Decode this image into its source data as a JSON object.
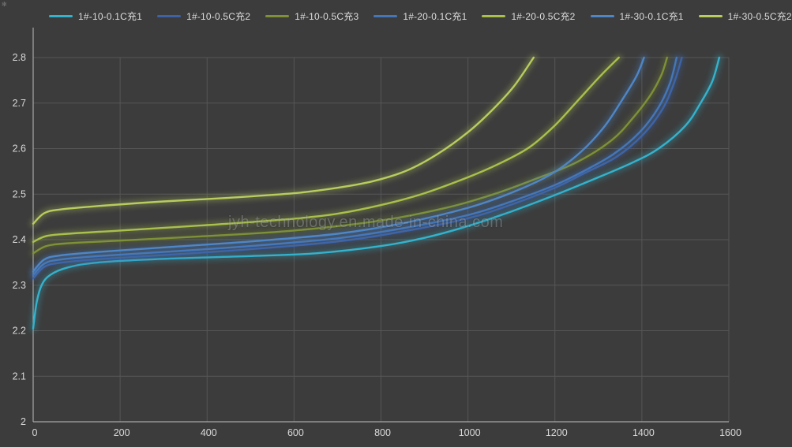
{
  "watermark": "jyh-technology.en.made-in-china.com",
  "corner_glyph": "✻",
  "colors": {
    "background": "#3c3c3c",
    "grid": "#565656",
    "axis": "#a6a6a6",
    "tick_label": "#d9d9d9",
    "legend_label": "#dedede",
    "watermark_color": "rgba(215,222,228,0.30)"
  },
  "chart_data": {
    "type": "line",
    "title": "",
    "xlabel": "",
    "ylabel": "",
    "xlim": [
      0,
      1600
    ],
    "ylim": [
      2.0,
      2.8
    ],
    "grid": true,
    "legend_position": "top",
    "x_ticks": {
      "values": [
        0,
        200,
        400,
        600,
        800,
        1000,
        1200,
        1400,
        1600
      ],
      "labels": [
        "0",
        "200",
        "400",
        "600",
        "800",
        "1000",
        "1200",
        "1400",
        "1600"
      ]
    },
    "y_ticks": {
      "values": [
        2.0,
        2.1,
        2.2,
        2.3,
        2.4,
        2.5,
        2.6,
        2.7,
        2.8
      ],
      "labels": [
        "2",
        "2.1",
        "2.2",
        "2.3",
        "2.4",
        "2.5",
        "2.6",
        "2.7",
        "2.8"
      ]
    },
    "series": [
      {
        "name": "1#-10-0.1C充1",
        "color": "#35b2cc",
        "points": [
          [
            0,
            2.205
          ],
          [
            8,
            2.262
          ],
          [
            20,
            2.301
          ],
          [
            40,
            2.323
          ],
          [
            80,
            2.339
          ],
          [
            150,
            2.35
          ],
          [
            300,
            2.358
          ],
          [
            500,
            2.364
          ],
          [
            650,
            2.37
          ],
          [
            800,
            2.386
          ],
          [
            900,
            2.404
          ],
          [
            1000,
            2.43
          ],
          [
            1100,
            2.462
          ],
          [
            1200,
            2.498
          ],
          [
            1300,
            2.537
          ],
          [
            1380,
            2.57
          ],
          [
            1440,
            2.601
          ],
          [
            1500,
            2.65
          ],
          [
            1535,
            2.7
          ],
          [
            1562,
            2.748
          ],
          [
            1578,
            2.8
          ]
        ]
      },
      {
        "name": "1#-10-0.5C充2",
        "color": "#3e62a5",
        "points": [
          [
            0,
            2.315
          ],
          [
            25,
            2.34
          ],
          [
            60,
            2.349
          ],
          [
            150,
            2.357
          ],
          [
            300,
            2.366
          ],
          [
            500,
            2.379
          ],
          [
            700,
            2.396
          ],
          [
            850,
            2.418
          ],
          [
            1000,
            2.447
          ],
          [
            1100,
            2.477
          ],
          [
            1200,
            2.514
          ],
          [
            1270,
            2.547
          ],
          [
            1342,
            2.582
          ],
          [
            1402,
            2.63
          ],
          [
            1447,
            2.686
          ],
          [
            1474,
            2.744
          ],
          [
            1492,
            2.8
          ]
        ]
      },
      {
        "name": "1#-10-0.5C充3",
        "color": "#7e9138",
        "points": [
          [
            0,
            2.37
          ],
          [
            30,
            2.386
          ],
          [
            80,
            2.392
          ],
          [
            200,
            2.398
          ],
          [
            400,
            2.408
          ],
          [
            600,
            2.42
          ],
          [
            800,
            2.442
          ],
          [
            950,
            2.47
          ],
          [
            1060,
            2.5
          ],
          [
            1160,
            2.535
          ],
          [
            1250,
            2.57
          ],
          [
            1330,
            2.618
          ],
          [
            1380,
            2.668
          ],
          [
            1420,
            2.718
          ],
          [
            1445,
            2.762
          ],
          [
            1458,
            2.8
          ]
        ]
      },
      {
        "name": "1#-20-0.1C充1",
        "color": "#4577b8",
        "points": [
          [
            0,
            2.322
          ],
          [
            25,
            2.347
          ],
          [
            60,
            2.356
          ],
          [
            150,
            2.364
          ],
          [
            300,
            2.373
          ],
          [
            500,
            2.386
          ],
          [
            700,
            2.403
          ],
          [
            850,
            2.425
          ],
          [
            1000,
            2.454
          ],
          [
            1100,
            2.484
          ],
          [
            1200,
            2.52
          ],
          [
            1265,
            2.55
          ],
          [
            1335,
            2.588
          ],
          [
            1395,
            2.636
          ],
          [
            1438,
            2.69
          ],
          [
            1465,
            2.745
          ],
          [
            1480,
            2.8
          ]
        ]
      },
      {
        "name": "1#-20-0.5C充2",
        "color": "#a9c04d",
        "points": [
          [
            0,
            2.395
          ],
          [
            30,
            2.408
          ],
          [
            80,
            2.413
          ],
          [
            200,
            2.42
          ],
          [
            400,
            2.432
          ],
          [
            600,
            2.446
          ],
          [
            700,
            2.457
          ],
          [
            800,
            2.476
          ],
          [
            900,
            2.502
          ],
          [
            1000,
            2.537
          ],
          [
            1070,
            2.566
          ],
          [
            1140,
            2.602
          ],
          [
            1200,
            2.651
          ],
          [
            1256,
            2.709
          ],
          [
            1305,
            2.76
          ],
          [
            1347,
            2.8
          ]
        ]
      },
      {
        "name": "1#-30-0.1C充1",
        "color": "#4f86c6",
        "points": [
          [
            0,
            2.33
          ],
          [
            25,
            2.356
          ],
          [
            60,
            2.365
          ],
          [
            150,
            2.373
          ],
          [
            300,
            2.383
          ],
          [
            500,
            2.396
          ],
          [
            700,
            2.413
          ],
          [
            850,
            2.436
          ],
          [
            1000,
            2.47
          ],
          [
            1100,
            2.503
          ],
          [
            1190,
            2.543
          ],
          [
            1260,
            2.593
          ],
          [
            1315,
            2.65
          ],
          [
            1358,
            2.712
          ],
          [
            1388,
            2.76
          ],
          [
            1405,
            2.8
          ]
        ]
      },
      {
        "name": "1#-30-0.5C充2",
        "color": "#b8cc5f",
        "points": [
          [
            0,
            2.435
          ],
          [
            25,
            2.458
          ],
          [
            60,
            2.466
          ],
          [
            150,
            2.474
          ],
          [
            300,
            2.484
          ],
          [
            450,
            2.492
          ],
          [
            600,
            2.502
          ],
          [
            700,
            2.514
          ],
          [
            780,
            2.528
          ],
          [
            860,
            2.552
          ],
          [
            930,
            2.588
          ],
          [
            1000,
            2.636
          ],
          [
            1055,
            2.684
          ],
          [
            1105,
            2.736
          ],
          [
            1151,
            2.8
          ]
        ]
      }
    ]
  }
}
